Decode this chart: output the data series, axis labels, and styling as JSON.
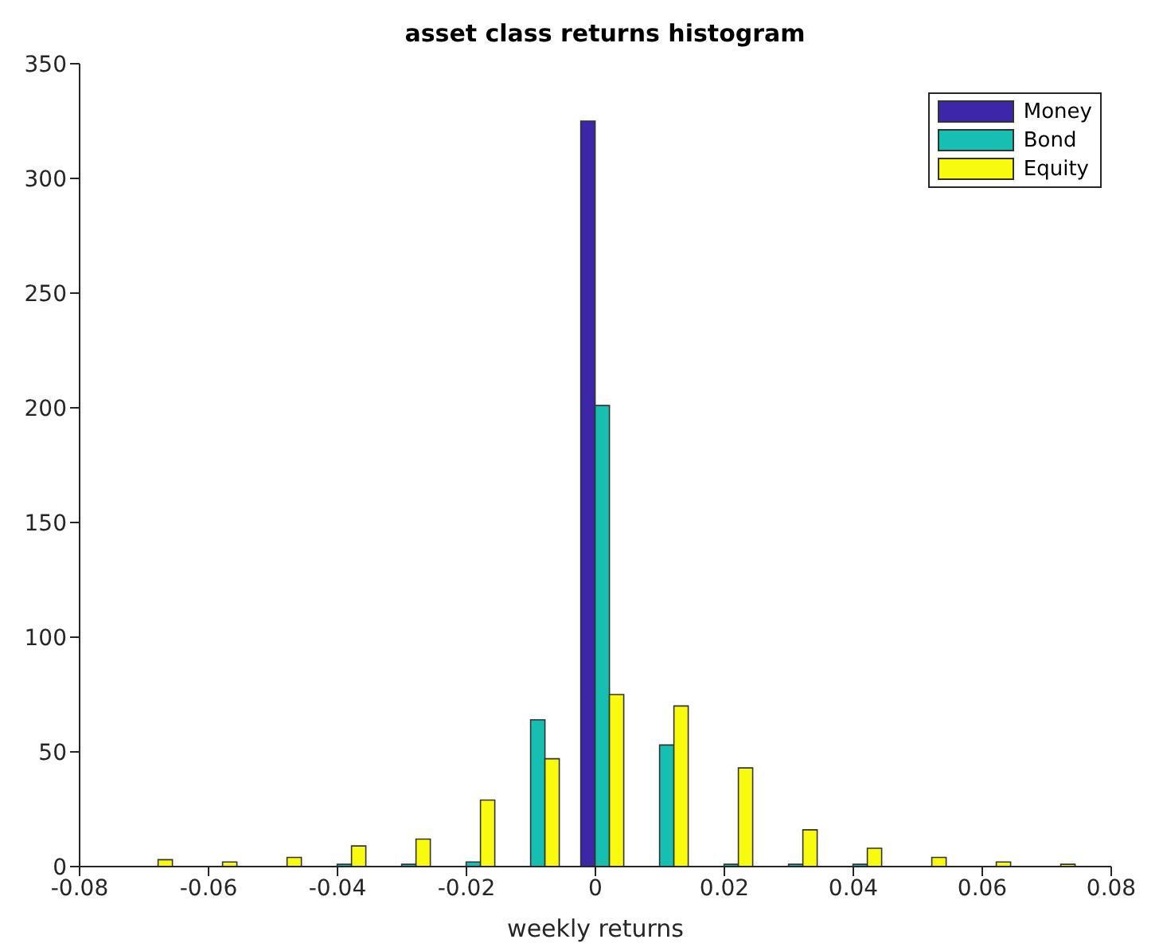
{
  "chart_data": {
    "type": "bar",
    "title": "asset class returns histogram",
    "xlabel": "weekly returns",
    "x": [
      -0.069,
      -0.059,
      -0.049,
      -0.039,
      -0.029,
      -0.019,
      -0.009,
      0.001,
      0.011,
      0.021,
      0.031,
      0.041,
      0.051,
      0.061,
      0.071
    ],
    "series": [
      {
        "name": "Money",
        "color": "#3e26a8",
        "values": [
          0,
          0,
          0,
          0,
          0,
          0,
          0,
          325,
          0,
          0,
          0,
          0,
          0,
          0,
          0
        ]
      },
      {
        "name": "Bond",
        "color": "#17bfb0",
        "values": [
          0,
          0,
          0,
          1,
          1,
          2,
          64,
          201,
          53,
          1,
          1,
          1,
          0,
          0,
          0
        ]
      },
      {
        "name": "Equity",
        "color": "#f9fb0e",
        "values": [
          3,
          2,
          4,
          9,
          12,
          29,
          47,
          75,
          70,
          43,
          16,
          8,
          4,
          2,
          1
        ]
      }
    ],
    "xlim": [
      -0.08,
      0.08
    ],
    "xticks": [
      -0.08,
      -0.06,
      -0.04,
      -0.02,
      0,
      0.02,
      0.04,
      0.06,
      0.08
    ],
    "ylim": [
      0,
      350
    ],
    "yticks": [
      0,
      50,
      100,
      150,
      200,
      250,
      300,
      350
    ],
    "legend": "top right"
  }
}
